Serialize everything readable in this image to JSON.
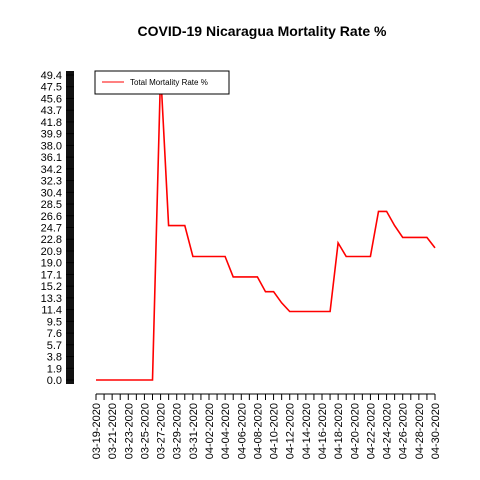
{
  "chart_data": {
    "type": "line",
    "title": "COVID-19 Nicaragua Mortality Rate %",
    "xlabel": "",
    "ylabel": "",
    "legend": {
      "label": "Total Mortality Rate %",
      "position": "top-left"
    },
    "grid": false,
    "x": [
      "03-19-2020",
      "03-20-2020",
      "03-21-2020",
      "03-22-2020",
      "03-23-2020",
      "03-24-2020",
      "03-25-2020",
      "03-26-2020",
      "03-27-2020",
      "03-28-2020",
      "03-29-2020",
      "03-30-2020",
      "03-31-2020",
      "04-01-2020",
      "04-02-2020",
      "04-03-2020",
      "04-04-2020",
      "04-05-2020",
      "04-06-2020",
      "04-07-2020",
      "04-08-2020",
      "04-09-2020",
      "04-10-2020",
      "04-11-2020",
      "04-12-2020",
      "04-13-2020",
      "04-14-2020",
      "04-15-2020",
      "04-16-2020",
      "04-17-2020",
      "04-18-2020",
      "04-19-2020",
      "04-20-2020",
      "04-21-2020",
      "04-22-2020",
      "04-23-2020",
      "04-24-2020",
      "04-25-2020",
      "04-26-2020",
      "04-27-2020",
      "04-28-2020",
      "04-29-2020",
      "04-30-2020"
    ],
    "x_tick_labels": [
      "03-19-2020",
      "03-21-2020",
      "03-23-2020",
      "03-25-2020",
      "03-27-2020",
      "03-29-2020",
      "03-31-2020",
      "04-02-2020",
      "04-04-2020",
      "04-06-2020",
      "04-08-2020",
      "04-10-2020",
      "04-12-2020",
      "04-14-2020",
      "04-16-2020",
      "04-18-2020",
      "04-20-2020",
      "04-22-2020",
      "04-24-2020",
      "04-26-2020",
      "04-28-2020",
      "04-30-2020"
    ],
    "series": [
      {
        "name": "Total Mortality Rate %",
        "color": "#ff0000",
        "values": [
          0,
          0,
          0,
          0,
          0,
          0,
          0,
          0,
          50,
          25,
          25,
          25,
          20,
          20,
          20,
          20,
          20,
          16.7,
          16.7,
          16.7,
          16.7,
          14.3,
          14.3,
          12.5,
          11.1,
          11.1,
          11.1,
          11.1,
          11.1,
          11.1,
          22.2,
          20,
          20,
          20,
          20,
          27.3,
          27.3,
          25,
          23.1,
          23.1,
          23.1,
          23.1,
          21.4
        ]
      }
    ],
    "y_ticks": [
      "0.0",
      "1.9",
      "3.8",
      "5.7",
      "7.6",
      "9.5",
      "11.4",
      "13.3",
      "15.2",
      "17.1",
      "19.0",
      "20.9",
      "22.8",
      "24.7",
      "26.6",
      "28.5",
      "30.4",
      "32.3",
      "34.2",
      "36.1",
      "38.0",
      "39.9",
      "41.8",
      "43.7",
      "45.6",
      "47.5",
      "49.4"
    ],
    "ylim": [
      0,
      49.4
    ]
  }
}
